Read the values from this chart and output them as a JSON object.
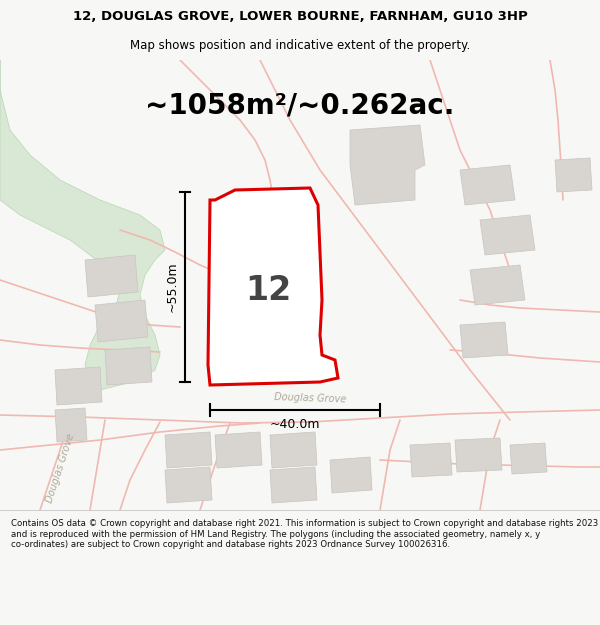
{
  "title_line1": "12, DOUGLAS GROVE, LOWER BOURNE, FARNHAM, GU10 3HP",
  "title_line2": "Map shows position and indicative extent of the property.",
  "area_text": "~1058m²/~0.262ac.",
  "label_number": "12",
  "dim_vertical": "~55.0m",
  "dim_horizontal": "~40.0m",
  "road_label_main": "Douglas Grove",
  "road_label_left": "Douglas Grove",
  "footer_text": "Contains OS data © Crown copyright and database right 2021. This information is subject to Crown copyright and database rights 2023 and is reproduced with the permission of HM Land Registry. The polygons (including the associated geometry, namely x, y co-ordinates) are subject to Crown copyright and database rights 2023 Ordnance Survey 100026316.",
  "bg_color": "#f7f7f5",
  "map_bg": "#f8f8f6",
  "plot_fill": "#ffffff",
  "plot_stroke": "#dd0000",
  "road_color": "#f0b8b0",
  "building_color": "#d8d5d0",
  "building_edge": "#c8c5c0",
  "green_color": "#d8e8d4",
  "green_edge": "#c0d8bc",
  "dim_color": "#000000",
  "title_color": "#000000",
  "footer_color": "#111111",
  "title_fontsize": 9.5,
  "subtitle_fontsize": 8.5,
  "area_fontsize": 20,
  "label_fontsize": 24,
  "dim_fontsize": 9,
  "footer_fontsize": 6.2
}
